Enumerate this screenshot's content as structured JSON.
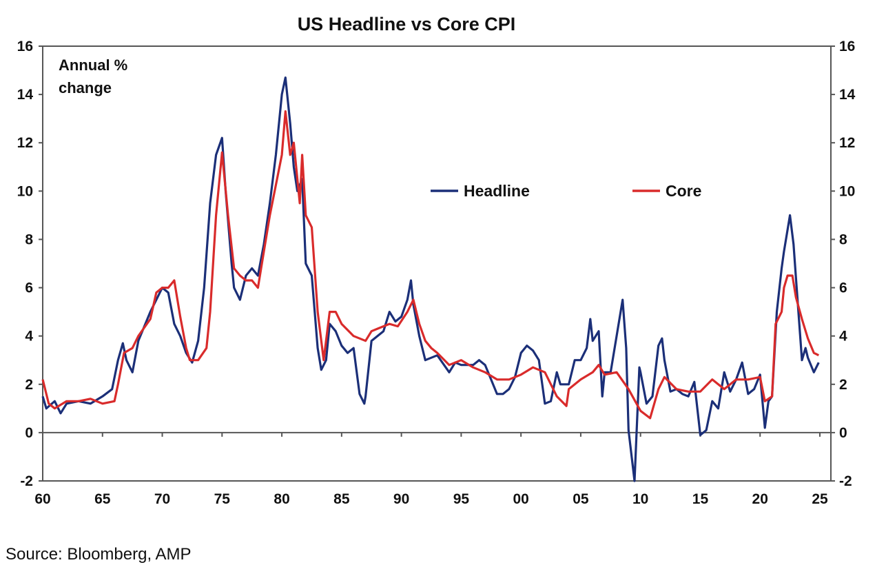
{
  "chart_data": {
    "type": "line",
    "title": "US Headline vs Core CPI",
    "annotation": [
      "Annual %",
      "change"
    ],
    "source": "Source: Bloomberg, AMP",
    "xlim": [
      1960,
      2026
    ],
    "ylim": [
      -2,
      16
    ],
    "yticks": [
      16,
      14,
      12,
      10,
      8,
      6,
      4,
      2,
      0,
      -2
    ],
    "xticks": [
      {
        "year": 1960,
        "label": "60"
      },
      {
        "year": 1965,
        "label": "65"
      },
      {
        "year": 1970,
        "label": "70"
      },
      {
        "year": 1975,
        "label": "75"
      },
      {
        "year": 1980,
        "label": "80"
      },
      {
        "year": 1985,
        "label": "85"
      },
      {
        "year": 1990,
        "label": "90"
      },
      {
        "year": 1995,
        "label": "95"
      },
      {
        "year": 2000,
        "label": "00"
      },
      {
        "year": 2005,
        "label": "05"
      },
      {
        "year": 2010,
        "label": "10"
      },
      {
        "year": 2015,
        "label": "15"
      },
      {
        "year": 2020,
        "label": "20"
      },
      {
        "year": 2025,
        "label": "25"
      }
    ],
    "grid": false,
    "legend_placement": "center-right",
    "series": [
      {
        "name": "Headline",
        "color": "#1b2f78",
        "points": [
          [
            1960,
            1.5
          ],
          [
            1960.3,
            1.0
          ],
          [
            1961,
            1.3
          ],
          [
            1961.5,
            0.8
          ],
          [
            1962,
            1.2
          ],
          [
            1963,
            1.3
          ],
          [
            1964,
            1.2
          ],
          [
            1965,
            1.5
          ],
          [
            1965.8,
            1.8
          ],
          [
            1966.3,
            3.0
          ],
          [
            1966.7,
            3.7
          ],
          [
            1967,
            3.0
          ],
          [
            1967.5,
            2.5
          ],
          [
            1968,
            3.8
          ],
          [
            1969,
            5.0
          ],
          [
            1969.5,
            5.5
          ],
          [
            1970,
            6.0
          ],
          [
            1970.5,
            5.8
          ],
          [
            1971,
            4.5
          ],
          [
            1971.5,
            4.0
          ],
          [
            1972,
            3.3
          ],
          [
            1972.5,
            2.9
          ],
          [
            1973,
            3.8
          ],
          [
            1973.5,
            6.0
          ],
          [
            1974,
            9.5
          ],
          [
            1974.5,
            11.5
          ],
          [
            1975,
            12.2
          ],
          [
            1975.3,
            10.0
          ],
          [
            1975.8,
            7.0
          ],
          [
            1976,
            6.0
          ],
          [
            1976.5,
            5.5
          ],
          [
            1977,
            6.5
          ],
          [
            1977.5,
            6.8
          ],
          [
            1978,
            6.5
          ],
          [
            1978.5,
            7.8
          ],
          [
            1979,
            9.5
          ],
          [
            1979.5,
            11.5
          ],
          [
            1980,
            14.0
          ],
          [
            1980.3,
            14.7
          ],
          [
            1980.7,
            12.8
          ],
          [
            1981,
            11.0
          ],
          [
            1981.3,
            10.0
          ],
          [
            1981.7,
            10.5
          ],
          [
            1982,
            7.0
          ],
          [
            1982.5,
            6.5
          ],
          [
            1983,
            3.5
          ],
          [
            1983.3,
            2.6
          ],
          [
            1983.7,
            3.0
          ],
          [
            1984,
            4.5
          ],
          [
            1984.5,
            4.2
          ],
          [
            1985,
            3.6
          ],
          [
            1985.5,
            3.3
          ],
          [
            1986,
            3.5
          ],
          [
            1986.5,
            1.6
          ],
          [
            1986.9,
            1.2
          ],
          [
            1987,
            1.5
          ],
          [
            1987.5,
            3.8
          ],
          [
            1988,
            4.0
          ],
          [
            1988.5,
            4.2
          ],
          [
            1989,
            5.0
          ],
          [
            1989.5,
            4.6
          ],
          [
            1990,
            4.8
          ],
          [
            1990.5,
            5.5
          ],
          [
            1990.8,
            6.3
          ],
          [
            1991,
            5.3
          ],
          [
            1991.5,
            4.0
          ],
          [
            1992,
            3.0
          ],
          [
            1992.5,
            3.1
          ],
          [
            1993,
            3.2
          ],
          [
            1994,
            2.5
          ],
          [
            1994.5,
            2.9
          ],
          [
            1995,
            2.8
          ],
          [
            1996,
            2.8
          ],
          [
            1996.5,
            3.0
          ],
          [
            1997,
            2.8
          ],
          [
            1997.5,
            2.2
          ],
          [
            1998,
            1.6
          ],
          [
            1998.5,
            1.6
          ],
          [
            1999,
            1.8
          ],
          [
            1999.5,
            2.3
          ],
          [
            2000,
            3.3
          ],
          [
            2000.5,
            3.6
          ],
          [
            2001,
            3.4
          ],
          [
            2001.5,
            3.0
          ],
          [
            2002,
            1.2
          ],
          [
            2002.5,
            1.3
          ],
          [
            2003,
            2.5
          ],
          [
            2003.3,
            2.0
          ],
          [
            2004,
            2.0
          ],
          [
            2004.5,
            3.0
          ],
          [
            2005,
            3.0
          ],
          [
            2005.5,
            3.5
          ],
          [
            2005.8,
            4.7
          ],
          [
            2006,
            3.8
          ],
          [
            2006.5,
            4.2
          ],
          [
            2006.8,
            1.5
          ],
          [
            2007,
            2.5
          ],
          [
            2007.5,
            2.5
          ],
          [
            2008,
            4.0
          ],
          [
            2008.5,
            5.5
          ],
          [
            2008.8,
            3.5
          ],
          [
            2009,
            0.1
          ],
          [
            2009.5,
            -2.0
          ],
          [
            2009.9,
            2.7
          ],
          [
            2010,
            2.5
          ],
          [
            2010.5,
            1.2
          ],
          [
            2011,
            1.5
          ],
          [
            2011.5,
            3.6
          ],
          [
            2011.8,
            3.9
          ],
          [
            2012,
            3.0
          ],
          [
            2012.5,
            1.7
          ],
          [
            2013,
            1.8
          ],
          [
            2013.5,
            1.6
          ],
          [
            2014,
            1.5
          ],
          [
            2014.5,
            2.1
          ],
          [
            2015,
            -0.1
          ],
          [
            2015.5,
            0.1
          ],
          [
            2016,
            1.3
          ],
          [
            2016.5,
            1.0
          ],
          [
            2017,
            2.5
          ],
          [
            2017.5,
            1.7
          ],
          [
            2018,
            2.2
          ],
          [
            2018.5,
            2.9
          ],
          [
            2019,
            1.6
          ],
          [
            2019.5,
            1.8
          ],
          [
            2020,
            2.4
          ],
          [
            2020.4,
            0.2
          ],
          [
            2020.7,
            1.3
          ],
          [
            2021,
            1.5
          ],
          [
            2021.4,
            5.0
          ],
          [
            2021.8,
            6.8
          ],
          [
            2022,
            7.5
          ],
          [
            2022.5,
            9.0
          ],
          [
            2022.8,
            7.8
          ],
          [
            2023,
            6.4
          ],
          [
            2023.5,
            3.0
          ],
          [
            2023.8,
            3.5
          ],
          [
            2024,
            3.1
          ],
          [
            2024.5,
            2.5
          ],
          [
            2024.9,
            2.9
          ]
        ]
      },
      {
        "name": "Core",
        "color": "#d92b2b",
        "points": [
          [
            1960,
            2.2
          ],
          [
            1960.5,
            1.2
          ],
          [
            1961,
            1.0
          ],
          [
            1962,
            1.3
          ],
          [
            1963,
            1.3
          ],
          [
            1964,
            1.4
          ],
          [
            1965,
            1.2
          ],
          [
            1966,
            1.3
          ],
          [
            1966.3,
            2.0
          ],
          [
            1966.8,
            3.3
          ],
          [
            1967.5,
            3.5
          ],
          [
            1968,
            4.0
          ],
          [
            1969,
            4.7
          ],
          [
            1969.5,
            5.8
          ],
          [
            1970,
            6.0
          ],
          [
            1970.5,
            6.0
          ],
          [
            1971,
            6.3
          ],
          [
            1971.5,
            4.8
          ],
          [
            1972,
            3.5
          ],
          [
            1972.3,
            3.0
          ],
          [
            1973,
            3.0
          ],
          [
            1973.7,
            3.5
          ],
          [
            1974,
            5.0
          ],
          [
            1974.5,
            9.0
          ],
          [
            1975,
            11.6
          ],
          [
            1975.5,
            9.0
          ],
          [
            1976,
            6.8
          ],
          [
            1976.5,
            6.5
          ],
          [
            1977,
            6.3
          ],
          [
            1977.5,
            6.3
          ],
          [
            1978,
            6.0
          ],
          [
            1978.5,
            7.5
          ],
          [
            1979,
            9.0
          ],
          [
            1980,
            11.5
          ],
          [
            1980.3,
            13.3
          ],
          [
            1980.7,
            11.5
          ],
          [
            1981,
            12.0
          ],
          [
            1981.5,
            9.5
          ],
          [
            1981.7,
            11.5
          ],
          [
            1982,
            9.0
          ],
          [
            1982.5,
            8.5
          ],
          [
            1983,
            5.0
          ],
          [
            1983.5,
            3.0
          ],
          [
            1984,
            5.0
          ],
          [
            1984.5,
            5.0
          ],
          [
            1985,
            4.5
          ],
          [
            1986,
            4.0
          ],
          [
            1987,
            3.8
          ],
          [
            1987.5,
            4.2
          ],
          [
            1988,
            4.3
          ],
          [
            1989,
            4.5
          ],
          [
            1989.7,
            4.4
          ],
          [
            1990.5,
            5.0
          ],
          [
            1991,
            5.5
          ],
          [
            1991.5,
            4.5
          ],
          [
            1992,
            3.8
          ],
          [
            1992.5,
            3.5
          ],
          [
            1993,
            3.3
          ],
          [
            1994,
            2.8
          ],
          [
            1995,
            3.0
          ],
          [
            1996,
            2.7
          ],
          [
            1997,
            2.5
          ],
          [
            1998,
            2.2
          ],
          [
            1999,
            2.2
          ],
          [
            2000,
            2.4
          ],
          [
            2001,
            2.7
          ],
          [
            2002,
            2.5
          ],
          [
            2003,
            1.5
          ],
          [
            2003.8,
            1.1
          ],
          [
            2004,
            1.8
          ],
          [
            2005,
            2.2
          ],
          [
            2006,
            2.5
          ],
          [
            2006.5,
            2.8
          ],
          [
            2007,
            2.4
          ],
          [
            2008,
            2.5
          ],
          [
            2009,
            1.8
          ],
          [
            2010,
            0.9
          ],
          [
            2010.8,
            0.6
          ],
          [
            2011.5,
            1.8
          ],
          [
            2012,
            2.3
          ],
          [
            2013,
            1.8
          ],
          [
            2014,
            1.7
          ],
          [
            2015,
            1.7
          ],
          [
            2016,
            2.2
          ],
          [
            2017,
            1.8
          ],
          [
            2018,
            2.2
          ],
          [
            2019,
            2.2
          ],
          [
            2020,
            2.3
          ],
          [
            2020.4,
            1.3
          ],
          [
            2021,
            1.5
          ],
          [
            2021.3,
            4.5
          ],
          [
            2021.8,
            5.0
          ],
          [
            2022,
            6.0
          ],
          [
            2022.3,
            6.5
          ],
          [
            2022.7,
            6.5
          ],
          [
            2023,
            5.6
          ],
          [
            2023.5,
            4.7
          ],
          [
            2024,
            3.9
          ],
          [
            2024.5,
            3.3
          ],
          [
            2024.9,
            3.2
          ]
        ]
      }
    ]
  }
}
